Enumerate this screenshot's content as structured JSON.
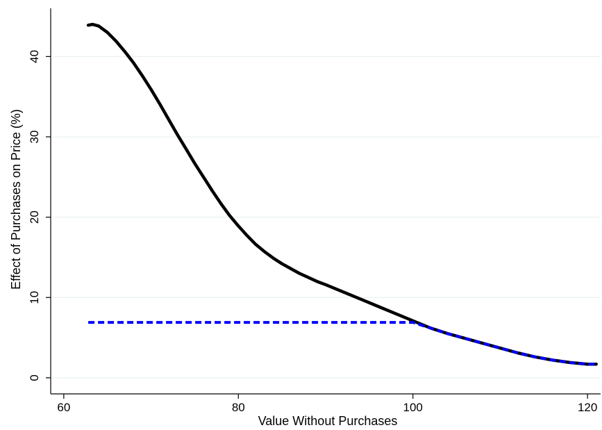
{
  "chart_data": {
    "type": "line",
    "title": "",
    "xlabel": "Value Without Purchases",
    "ylabel": "Effect of Purchases on Price (%)",
    "xlim": [
      58.5,
      121.5
    ],
    "ylim": [
      -2,
      46
    ],
    "xticks": [
      60,
      80,
      100,
      120
    ],
    "yticks": [
      0,
      10,
      20,
      30,
      40
    ],
    "grid": true,
    "legend": "none",
    "series": [
      {
        "style": "solid",
        "color": "#000000",
        "x": [
          62.8,
          63.3,
          64,
          65,
          66,
          67,
          68,
          69,
          70,
          71,
          72,
          73,
          74,
          75,
          76,
          77,
          78,
          79,
          80,
          81,
          82,
          83,
          84,
          85,
          86,
          87,
          88,
          89,
          90,
          92,
          94,
          96,
          98,
          100,
          102,
          104,
          106,
          108,
          110,
          112,
          114,
          116,
          118,
          120,
          121
        ],
        "y": [
          43.9,
          44.0,
          43.8,
          43.0,
          41.9,
          40.6,
          39.2,
          37.6,
          35.9,
          34.1,
          32.2,
          30.3,
          28.5,
          26.7,
          25.0,
          23.3,
          21.7,
          20.2,
          18.9,
          17.7,
          16.6,
          15.7,
          14.9,
          14.2,
          13.6,
          13.0,
          12.5,
          12.0,
          11.6,
          10.7,
          9.8,
          8.9,
          8.0,
          7.1,
          6.2,
          5.5,
          4.9,
          4.3,
          3.7,
          3.1,
          2.6,
          2.2,
          1.9,
          1.7,
          1.7
        ]
      },
      {
        "style": "dashed",
        "color": "#0000ff",
        "x": [
          62.8,
          100,
          102,
          104,
          106,
          108,
          110,
          112,
          114,
          116,
          118,
          120,
          121
        ],
        "y": [
          6.9,
          6.9,
          6.2,
          5.5,
          4.9,
          4.3,
          3.7,
          3.1,
          2.6,
          2.2,
          1.9,
          1.7,
          1.7
        ]
      }
    ]
  }
}
